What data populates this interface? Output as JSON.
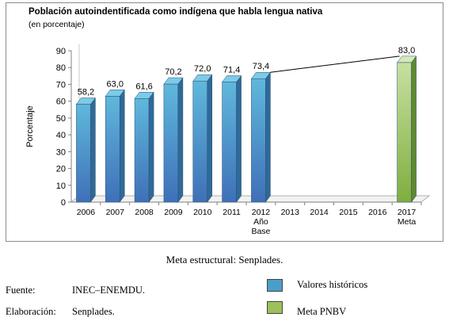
{
  "chart_data": {
    "type": "bar",
    "title": "Población autoindentificada como indígena que habla lengua nativa",
    "subtitle": "(en porcentaje)",
    "ylabel": "Porcentaje",
    "xlabel": "",
    "ylim": [
      0,
      90
    ],
    "yticks": [
      "0",
      "10",
      "20",
      "30",
      "40",
      "50",
      "60",
      "70",
      "80",
      "90"
    ],
    "categories": [
      "2006",
      "2007",
      "2008",
      "2009",
      "2010",
      "2011",
      "2012",
      "2013",
      "2014",
      "2015",
      "2016",
      "2017"
    ],
    "category_sublabels": {
      "2012": [
        "Año",
        "Base"
      ],
      "2017": [
        "Meta"
      ]
    },
    "series": [
      {
        "name": "Valores históricos",
        "color": "#4a9fc8",
        "values": [
          58.2,
          63.0,
          61.6,
          70.2,
          72.0,
          71.4,
          73.4,
          null,
          null,
          null,
          null,
          null
        ],
        "labels": [
          "58,2",
          "63,0",
          "61,6",
          "70,2",
          "72,0",
          "71,4",
          "73,4",
          "",
          "",
          "",
          "",
          ""
        ]
      },
      {
        "name": "Meta PNBV",
        "color": "#9dc05c",
        "values": [
          null,
          null,
          null,
          null,
          null,
          null,
          null,
          null,
          null,
          null,
          null,
          83.0
        ],
        "labels": [
          "",
          "",
          "",
          "",
          "",
          "",
          "",
          "",
          "",
          "",
          "",
          "83,0"
        ]
      }
    ],
    "trend_line": {
      "from": "2012",
      "to": "2017"
    },
    "grid": false,
    "legend_position": "bottom-right"
  },
  "caption": "Meta estructural: Senplades.",
  "source": {
    "label": "Fuente:",
    "value": "INEC–ENEMDU."
  },
  "elaboration": {
    "label": "Elaboración:",
    "value": "Senplades."
  },
  "legend": {
    "historic": "Valores históricos",
    "goal": "Meta PNBV"
  }
}
